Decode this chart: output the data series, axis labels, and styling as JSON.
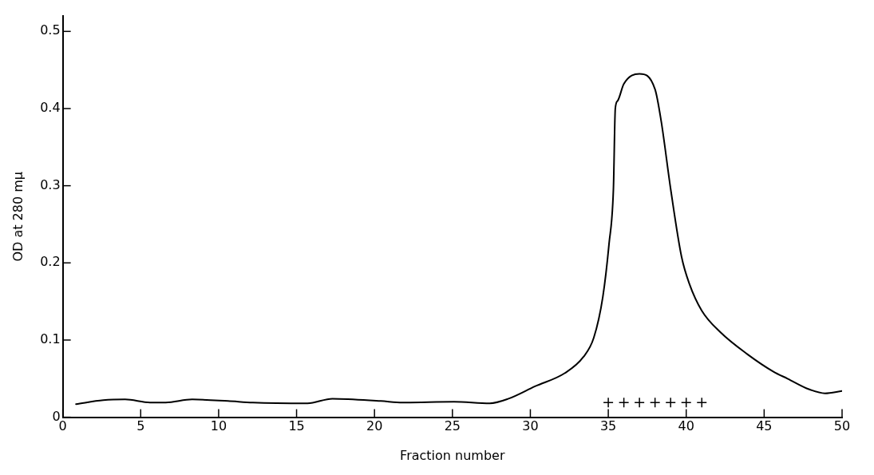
{
  "chart_data": {
    "type": "line",
    "xlabel": "Fraction number",
    "ylabel": "OD at 280 mμ",
    "xlim": [
      0,
      50
    ],
    "xticks": [
      0,
      5,
      10,
      15,
      20,
      25,
      30,
      35,
      40,
      45,
      50
    ],
    "ylim": [
      0,
      0.52
    ],
    "yticks": [
      0,
      0.1,
      0.2,
      0.3,
      0.4,
      0.5
    ],
    "grid": false,
    "legend": false,
    "series": [
      {
        "color": "#000000",
        "marker": "none",
        "line_style": "solid",
        "x": [
          0.85,
          2.6,
          4.0,
          5.6,
          6.6,
          8.3,
          10.6,
          12.2,
          15.7,
          17.3,
          20.4,
          21.8,
          25.1,
          27.4,
          28.6,
          30.3,
          32.2,
          33.4,
          34.07,
          34.65,
          35.05,
          35.33,
          35.45,
          35.6,
          36.0,
          37.0,
          38.0,
          38.4,
          39.0,
          39.7,
          40.2,
          41.0,
          42.2,
          43.9,
          45.6,
          46.5,
          47.9,
          48.9,
          50
        ],
        "values": [
          0.017,
          0.022,
          0.023,
          0.019,
          0.019,
          0.023,
          0.021,
          0.019,
          0.018,
          0.024,
          0.021,
          0.019,
          0.02,
          0.018,
          0.024,
          0.04,
          0.057,
          0.078,
          0.103,
          0.156,
          0.225,
          0.296,
          0.4,
          0.41,
          0.432,
          0.445,
          0.425,
          0.383,
          0.296,
          0.208,
          0.173,
          0.138,
          0.11,
          0.082,
          0.059,
          0.05,
          0.036,
          0.031,
          0.034
        ]
      },
      {
        "type": "scatter",
        "color": "#000000",
        "marker": "cross",
        "x": [
          35,
          36,
          37,
          38,
          39,
          40,
          41
        ],
        "values": [
          0.019,
          0.019,
          0.019,
          0.019,
          0.019,
          0.019,
          0.019
        ]
      }
    ]
  }
}
